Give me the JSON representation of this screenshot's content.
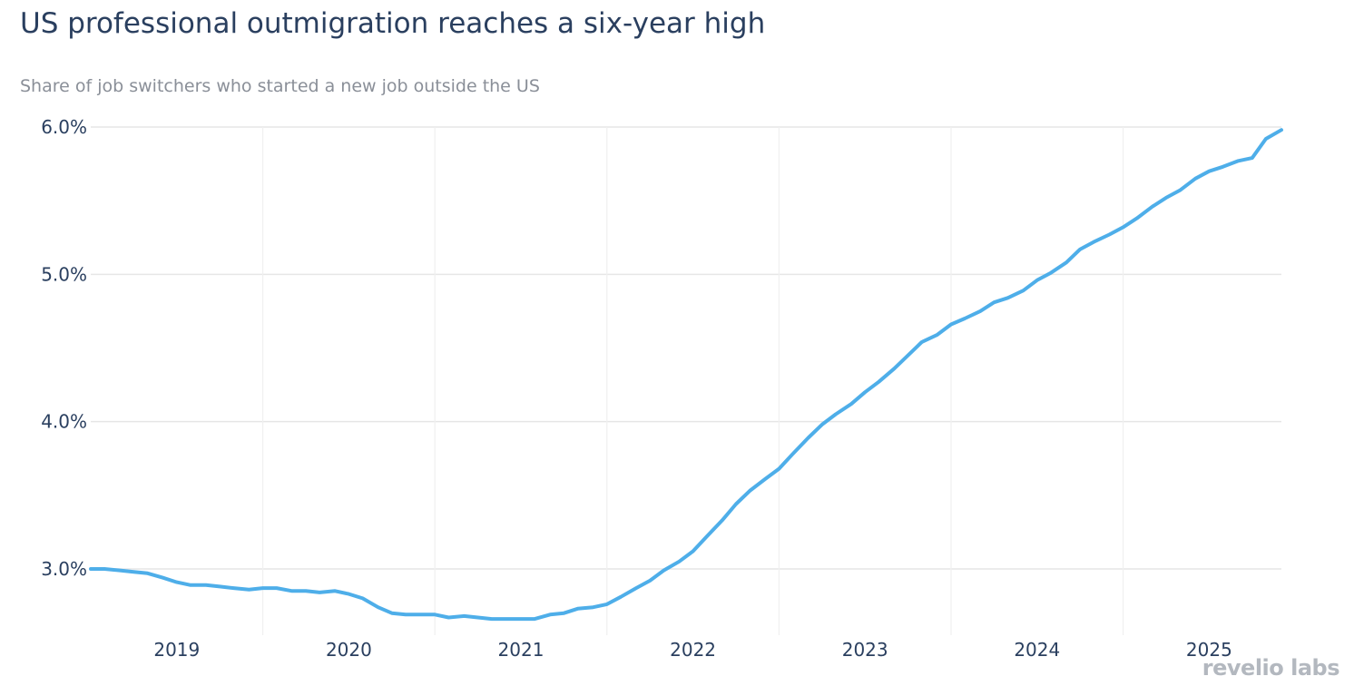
{
  "header": {
    "title": "US professional outmigration reaches a six-year high",
    "subtitle": "Share of job switchers who started a new job outside the US"
  },
  "logo": {
    "text": "revelio labs"
  },
  "colors": {
    "line": "#4eaee9",
    "grid": "#e6e6e6",
    "text": "#2a3f5f"
  },
  "chart_data": {
    "type": "line",
    "title": "US professional outmigration reaches a six-year high",
    "subtitle": "Share of job switchers who started a new job outside the US",
    "xlabel": "",
    "ylabel": "",
    "x_tick_labels": [
      "2019",
      "2020",
      "2021",
      "2022",
      "2023",
      "2024",
      "2025"
    ],
    "x_tick_positions": [
      2019.0,
      2020.0,
      2021.0,
      2022.0,
      2023.0,
      2024.0,
      2025.0
    ],
    "y_tick_labels": [
      "3.0%",
      "4.0%",
      "5.0%",
      "6.0%"
    ],
    "y_tick_values": [
      3.0,
      4.0,
      5.0,
      6.0
    ],
    "xlim": [
      2018.5,
      2025.42
    ],
    "ylim": [
      2.55,
      6.0
    ],
    "grid": true,
    "series": [
      {
        "x": [
          2018.5,
          2018.58,
          2018.67,
          2018.75,
          2018.83,
          2018.92,
          2019.0,
          2019.08,
          2019.17,
          2019.25,
          2019.33,
          2019.42,
          2019.5,
          2019.58,
          2019.67,
          2019.75,
          2019.83,
          2019.92,
          2020.0,
          2020.08,
          2020.17,
          2020.25,
          2020.33,
          2020.42,
          2020.5,
          2020.58,
          2020.67,
          2020.75,
          2020.83,
          2020.92,
          2021.0,
          2021.08,
          2021.17,
          2021.25,
          2021.33,
          2021.42,
          2021.5,
          2021.58,
          2021.67,
          2021.75,
          2021.83,
          2021.92,
          2022.0,
          2022.08,
          2022.17,
          2022.25,
          2022.33,
          2022.42,
          2022.5,
          2022.58,
          2022.67,
          2022.75,
          2022.83,
          2022.92,
          2023.0,
          2023.08,
          2023.17,
          2023.25,
          2023.33,
          2023.42,
          2023.5,
          2023.58,
          2023.67,
          2023.75,
          2023.83,
          2023.92,
          2024.0,
          2024.08,
          2024.17,
          2024.25,
          2024.33,
          2024.42,
          2024.5,
          2024.58,
          2024.67,
          2024.75,
          2024.83,
          2024.92,
          2025.0,
          2025.08,
          2025.17,
          2025.25,
          2025.33,
          2025.42
        ],
        "values": [
          3.0,
          3.0,
          2.99,
          2.98,
          2.97,
          2.94,
          2.91,
          2.89,
          2.89,
          2.88,
          2.87,
          2.86,
          2.87,
          2.87,
          2.85,
          2.85,
          2.84,
          2.85,
          2.83,
          2.8,
          2.74,
          2.7,
          2.69,
          2.69,
          2.69,
          2.67,
          2.68,
          2.67,
          2.66,
          2.66,
          2.66,
          2.66,
          2.69,
          2.7,
          2.73,
          2.74,
          2.76,
          2.81,
          2.87,
          2.92,
          2.99,
          3.05,
          3.12,
          3.22,
          3.33,
          3.44,
          3.53,
          3.61,
          3.68,
          3.78,
          3.89,
          3.98,
          4.05,
          4.12,
          4.2,
          4.27,
          4.36,
          4.45,
          4.54,
          4.59,
          4.66,
          4.7,
          4.75,
          4.81,
          4.84,
          4.89,
          4.96,
          5.01,
          5.08,
          5.17,
          5.22,
          5.27,
          5.32,
          5.38,
          5.46,
          5.52,
          5.57,
          5.65,
          5.7,
          5.73,
          5.77,
          5.79,
          5.92,
          5.98
        ]
      }
    ]
  }
}
